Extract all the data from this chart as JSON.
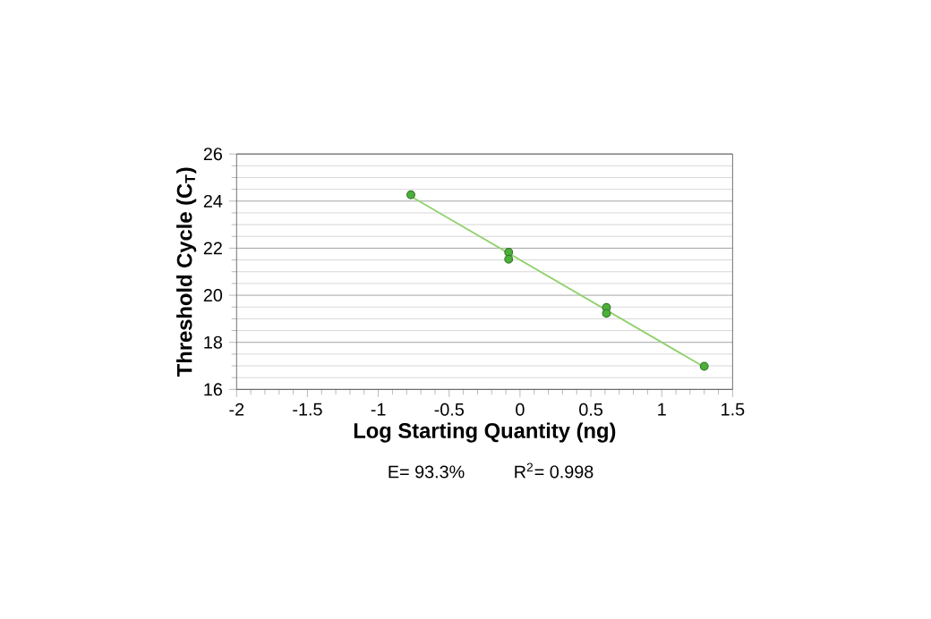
{
  "chart_data": {
    "type": "scatter",
    "xlabel": "Log Starting Quantity (ng)",
    "ylabel": "Threshold Cycle (C$_{T}$)",
    "xlim": [
      -2,
      1.5
    ],
    "xticks": [
      -2,
      -1.5,
      -1,
      -0.5,
      0,
      0.5,
      1,
      1.5
    ],
    "ylim": [
      16,
      26
    ],
    "yticks": [
      16,
      18,
      20,
      22,
      24,
      26
    ],
    "grid": "y",
    "series": [
      {
        "color": "#4caf3a",
        "marker": "circle",
        "x": [
          -0.77,
          -0.08,
          -0.08,
          0.61,
          0.61,
          1.3
        ],
        "values": [
          24.27,
          21.83,
          21.53,
          19.48,
          19.23,
          16.98
        ]
      },
      {
        "type": "line",
        "color": "#8fd16a",
        "x": [
          -0.77,
          1.3
        ],
        "values": [
          24.2,
          16.95
        ],
        "line_style": "solid",
        "marker": "none"
      }
    ],
    "annotations": [
      "E= 93.3%",
      "R$^{2}$= 0.998"
    ]
  }
}
